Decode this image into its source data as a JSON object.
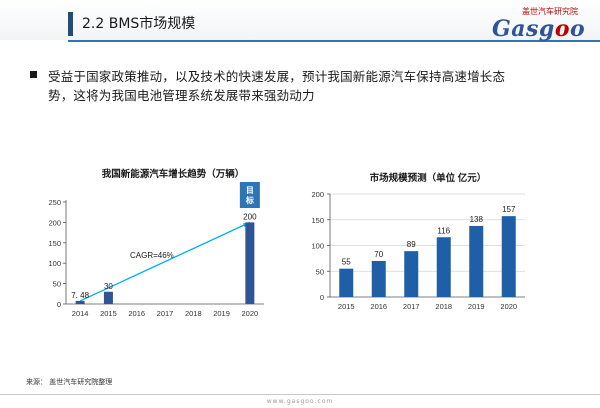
{
  "header": {
    "title": "2.2 BMS市场规模",
    "brand_cn": "盖世汽车研究院",
    "brand_logo_prefix": "Gasg",
    "brand_logo_o": "o",
    "brand_logo_suffix": "o"
  },
  "bullet": {
    "line1": "受益于国家政策推动，以及技术的快速发展，预计我国新能源汽车保持高速增长态",
    "line2": "势，这将为我国电池管理系统发展带来强劲动力"
  },
  "colors": {
    "accent": "#1f4e79",
    "bar_left": "#2f5597",
    "bar_right": "#1f5fa8",
    "trend_line": "#00b0f0",
    "target_box": "#2e75b6",
    "header_rule": "#2e75b6"
  },
  "chart_data": [
    {
      "type": "bar",
      "title": "我国新能源汽车增长趋势（万辆）",
      "categories": [
        "2014",
        "2015",
        "2016",
        "2017",
        "2018",
        "2019",
        "2020"
      ],
      "values": [
        7.48,
        30,
        null,
        null,
        null,
        null,
        200
      ],
      "data_labels": [
        "7. 48",
        "30",
        "",
        "",
        "",
        "",
        "200"
      ],
      "ylim": [
        0,
        250
      ],
      "yticks": [
        0,
        50,
        100,
        150,
        200,
        250
      ],
      "grid": false,
      "trend": {
        "from_category": "2014",
        "from_value": 7.48,
        "to_category": "2020",
        "to_value": 200
      },
      "annotation": "CAGR=46%",
      "target_label": "目标"
    },
    {
      "type": "bar",
      "title": "市场规模预测（单位 亿元）",
      "categories": [
        "2015",
        "2016",
        "2017",
        "2018",
        "2019",
        "2020"
      ],
      "values": [
        55,
        70,
        89,
        116,
        138,
        157
      ],
      "data_labels": [
        "55",
        "70",
        "89",
        "116",
        "138",
        "157"
      ],
      "ylim": [
        0,
        200
      ],
      "yticks": [
        0,
        50,
        100,
        150,
        200
      ],
      "grid": true
    }
  ],
  "footer": {
    "source": "来源：   盖世汽车研究院整理",
    "url": "www.gasgoo.com"
  }
}
